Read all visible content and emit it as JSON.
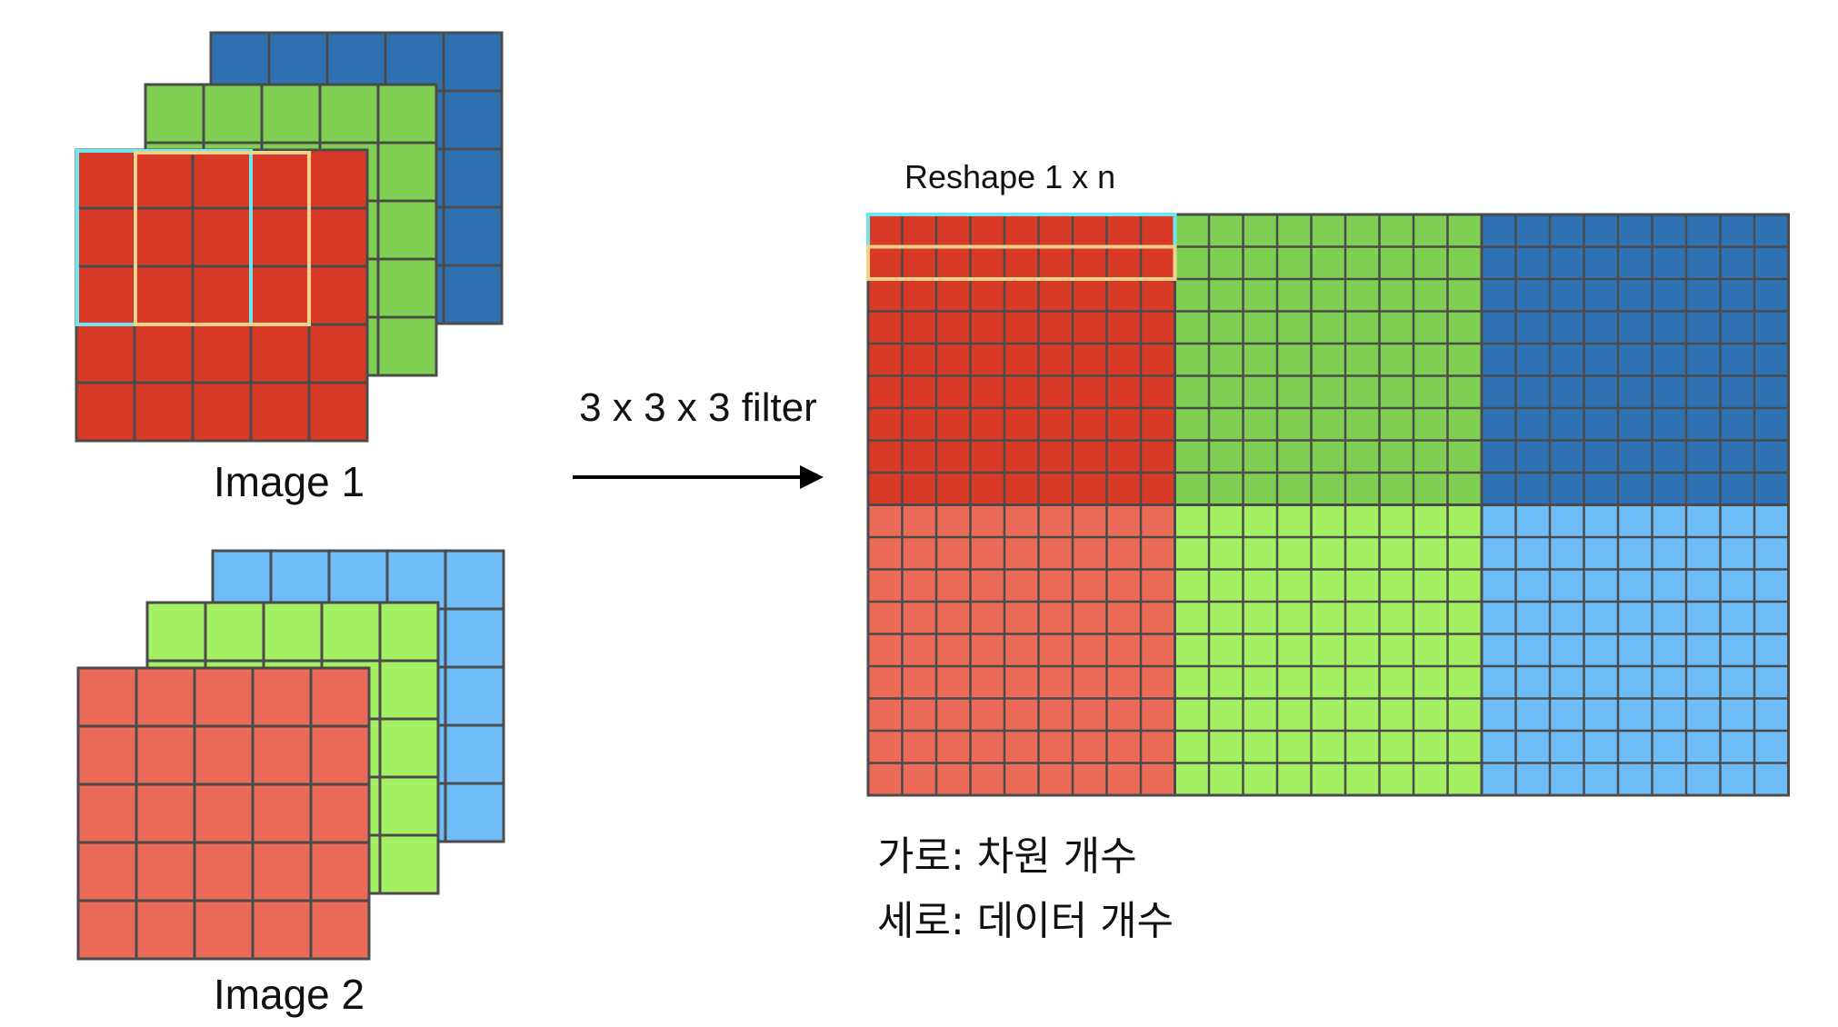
{
  "colors": {
    "image1_red": "#d93a27",
    "image1_green": "#7ecf52",
    "image1_blue": "#2f72b3",
    "image2_red": "#ec6b58",
    "image2_green": "#a4f063",
    "image2_blue": "#6ebcf8",
    "grid_line": "#4b4b4b",
    "filter_cyan": "#6fe6ef",
    "filter_yellow": "#f4d28a",
    "arrow": "#000000"
  },
  "stacks": [
    {
      "label": "Image 1",
      "grid": 5,
      "channels": [
        "blue",
        "green",
        "red"
      ]
    },
    {
      "label": "Image 2",
      "grid": 5,
      "channels": [
        "blue",
        "green",
        "red"
      ]
    }
  ],
  "arrow_label": "3 x 3 x 3 filter",
  "matrix": {
    "title": "Reshape 1 x n",
    "rows_per_image": 9,
    "cols_per_channel": 9,
    "channels": [
      "red",
      "green",
      "blue"
    ]
  },
  "notes": {
    "line1": "가로: 차원 개수",
    "line2": "세로: 데이터 개수"
  }
}
